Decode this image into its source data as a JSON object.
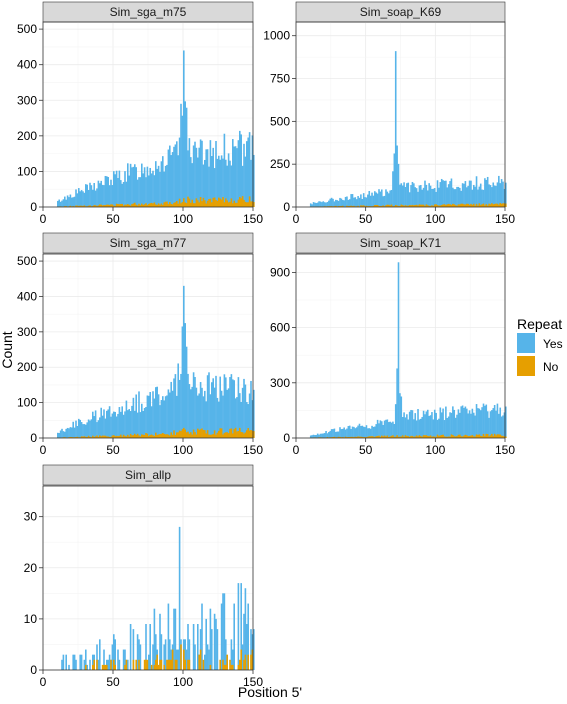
{
  "chart_data": {
    "type": "bar",
    "xlabel": "Position 5'",
    "ylabel": "Count",
    "legend": {
      "title": "Repeat",
      "placement": "right",
      "entries": [
        {
          "label": "Yes",
          "color": "#56B4E9"
        },
        {
          "label": "No",
          "color": "#E69F00"
        }
      ]
    },
    "colors": {
      "Yes": "#56B4E9",
      "No": "#E69F00"
    },
    "grid": true,
    "panels": [
      {
        "title": "Sim_sga_m75",
        "xlim": [
          0,
          150
        ],
        "ylim": [
          0,
          520
        ],
        "xticks": [
          0,
          50,
          100,
          150
        ],
        "yticks": [
          0,
          100,
          200,
          300,
          400,
          500
        ],
        "series": [
          {
            "name": "Yes",
            "points": [
              [
                10,
                15
              ],
              [
                20,
                35
              ],
              [
                30,
                50
              ],
              [
                40,
                65
              ],
              [
                50,
                80
              ],
              [
                60,
                95
              ],
              [
                70,
                105
              ],
              [
                80,
                120
              ],
              [
                90,
                135
              ],
              [
                95,
                145
              ],
              [
                99,
                250
              ],
              [
                100,
                440
              ],
              [
                101,
                250
              ],
              [
                105,
                150
              ],
              [
                110,
                150
              ],
              [
                120,
                155
              ],
              [
                130,
                160
              ],
              [
                140,
                165
              ],
              [
                150,
                165
              ]
            ]
          },
          {
            "name": "No",
            "points": [
              [
                10,
                1
              ],
              [
                30,
                4
              ],
              [
                50,
                6
              ],
              [
                70,
                9
              ],
              [
                90,
                12
              ],
              [
                100,
                20
              ],
              [
                120,
                18
              ],
              [
                140,
                20
              ],
              [
                150,
                22
              ]
            ]
          }
        ]
      },
      {
        "title": "Sim_soap_K69",
        "xlim": [
          0,
          150
        ],
        "ylim": [
          0,
          1080
        ],
        "xticks": [
          0,
          50,
          100,
          150
        ],
        "yticks": [
          0,
          250,
          500,
          750,
          1000
        ],
        "series": [
          {
            "name": "Yes",
            "points": [
              [
                10,
                20
              ],
              [
                20,
                35
              ],
              [
                30,
                50
              ],
              [
                40,
                60
              ],
              [
                50,
                70
              ],
              [
                60,
                85
              ],
              [
                68,
                95
              ],
              [
                70,
                300
              ],
              [
                71,
                910
              ],
              [
                72,
                300
              ],
              [
                74,
                110
              ],
              [
                80,
                115
              ],
              [
                90,
                120
              ],
              [
                100,
                125
              ],
              [
                110,
                130
              ],
              [
                120,
                135
              ],
              [
                130,
                140
              ],
              [
                140,
                145
              ],
              [
                150,
                150
              ]
            ]
          },
          {
            "name": "No",
            "points": [
              [
                10,
                2
              ],
              [
                40,
                6
              ],
              [
                70,
                10
              ],
              [
                100,
                12
              ],
              [
                130,
                15
              ],
              [
                150,
                16
              ]
            ]
          }
        ]
      },
      {
        "title": "Sim_sga_m77",
        "xlim": [
          0,
          150
        ],
        "ylim": [
          0,
          520
        ],
        "xticks": [
          0,
          50,
          100,
          150
        ],
        "yticks": [
          0,
          100,
          200,
          300,
          400,
          500
        ],
        "series": [
          {
            "name": "Yes",
            "points": [
              [
                10,
                15
              ],
              [
                20,
                35
              ],
              [
                30,
                50
              ],
              [
                40,
                65
              ],
              [
                50,
                80
              ],
              [
                60,
                95
              ],
              [
                70,
                105
              ],
              [
                80,
                120
              ],
              [
                90,
                135
              ],
              [
                95,
                145
              ],
              [
                99,
                250
              ],
              [
                100,
                430
              ],
              [
                101,
                250
              ],
              [
                105,
                150
              ],
              [
                110,
                150
              ],
              [
                120,
                145
              ],
              [
                130,
                140
              ],
              [
                140,
                140
              ],
              [
                150,
                135
              ]
            ]
          },
          {
            "name": "No",
            "points": [
              [
                10,
                1
              ],
              [
                30,
                4
              ],
              [
                50,
                6
              ],
              [
                70,
                9
              ],
              [
                90,
                12
              ],
              [
                100,
                20
              ],
              [
                120,
                18
              ],
              [
                140,
                20
              ],
              [
                150,
                22
              ]
            ]
          }
        ]
      },
      {
        "title": "Sim_soap_K71",
        "xlim": [
          0,
          150
        ],
        "ylim": [
          0,
          1000
        ],
        "xticks": [
          0,
          50,
          100,
          150
        ],
        "yticks": [
          0,
          300,
          600,
          900
        ],
        "series": [
          {
            "name": "Yes",
            "points": [
              [
                10,
                15
              ],
              [
                20,
                30
              ],
              [
                30,
                45
              ],
              [
                40,
                55
              ],
              [
                50,
                65
              ],
              [
                60,
                80
              ],
              [
                70,
                95
              ],
              [
                72,
                300
              ],
              [
                73,
                955
              ],
              [
                74,
                300
              ],
              [
                76,
                120
              ],
              [
                80,
                120
              ],
              [
                90,
                125
              ],
              [
                100,
                130
              ],
              [
                110,
                135
              ],
              [
                120,
                140
              ],
              [
                130,
                145
              ],
              [
                140,
                150
              ],
              [
                150,
                160
              ]
            ]
          },
          {
            "name": "No",
            "points": [
              [
                10,
                2
              ],
              [
                40,
                6
              ],
              [
                70,
                10
              ],
              [
                100,
                12
              ],
              [
                130,
                15
              ],
              [
                150,
                16
              ]
            ]
          }
        ]
      },
      {
        "title": "Sim_allp",
        "xlim": [
          0,
          150
        ],
        "ylim": [
          0,
          36
        ],
        "xticks": [
          0,
          50,
          100,
          150
        ],
        "yticks": [
          0,
          10,
          20,
          30
        ],
        "series": [
          {
            "name": "Yes",
            "points": [
              [
                12,
                4
              ],
              [
                20,
                2
              ],
              [
                30,
                3
              ],
              [
                40,
                4
              ],
              [
                50,
                5
              ],
              [
                60,
                6
              ],
              [
                70,
                7
              ],
              [
                80,
                9
              ],
              [
                90,
                10
              ],
              [
                96,
                12
              ],
              [
                97,
                28
              ],
              [
                98,
                12
              ],
              [
                100,
                8
              ],
              [
                110,
                9
              ],
              [
                120,
                11
              ],
              [
                130,
                12
              ],
              [
                140,
                13
              ],
              [
                150,
                10
              ]
            ]
          },
          {
            "name": "No",
            "points": [
              [
                30,
                1
              ],
              [
                60,
                1
              ],
              [
                90,
                2
              ],
              [
                97,
                3
              ],
              [
                110,
                2
              ],
              [
                130,
                2
              ],
              [
                150,
                2
              ]
            ]
          }
        ]
      }
    ]
  }
}
